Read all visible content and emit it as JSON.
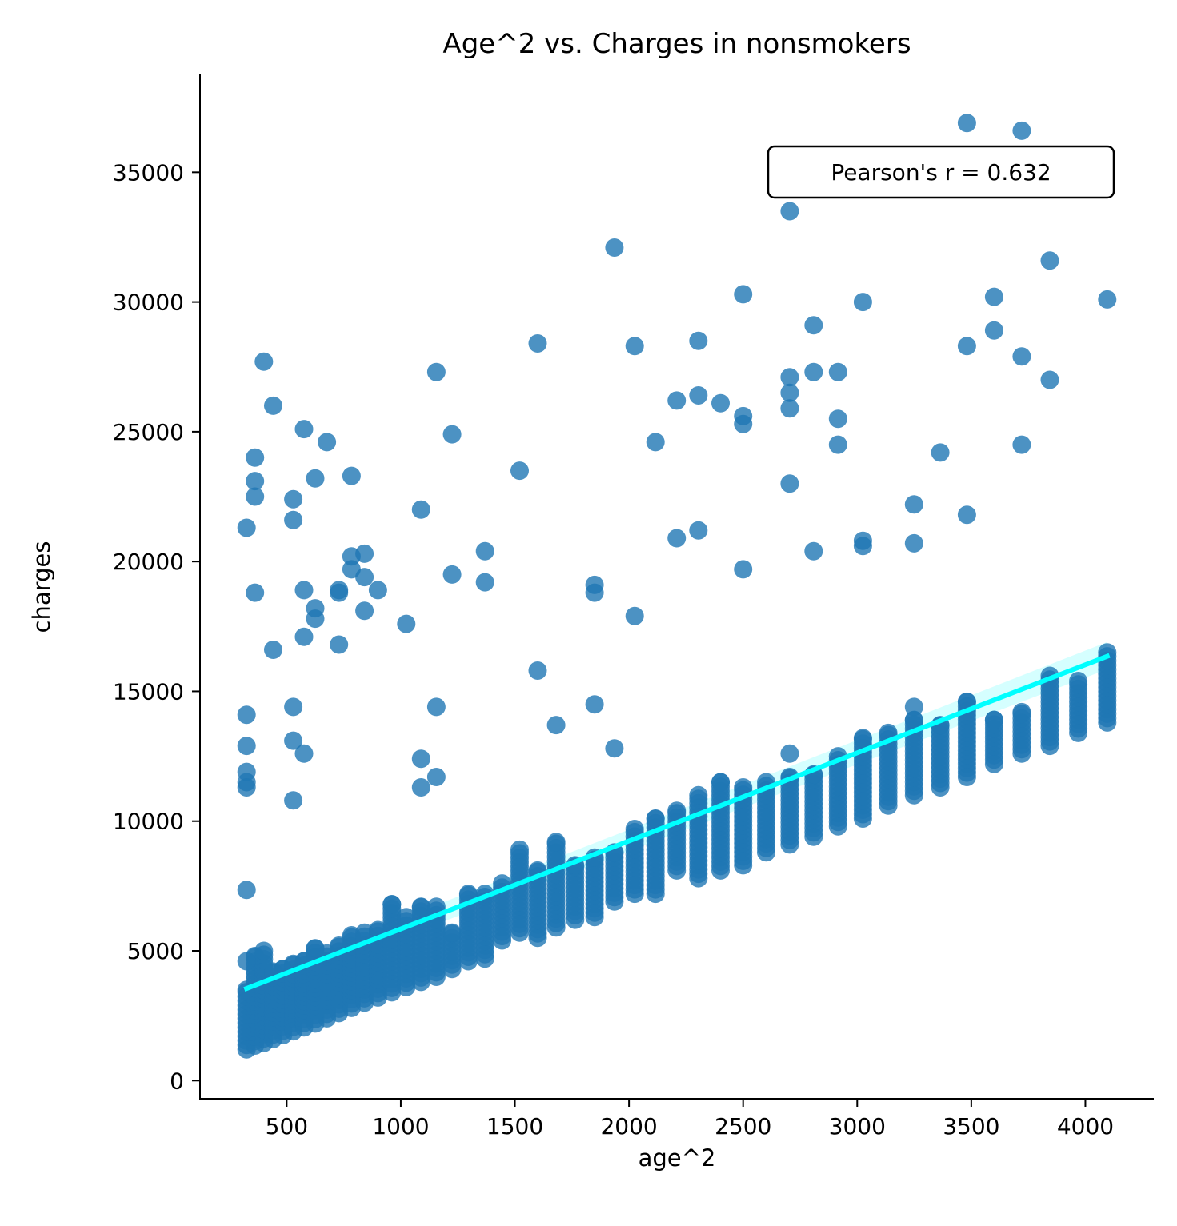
{
  "chart_data": {
    "type": "scatter",
    "title": "Age^2 vs. Charges in nonsmokers",
    "xlabel": "age^2",
    "ylabel": "charges",
    "xlim": [
      120,
      4300
    ],
    "ylim": [
      -700,
      38800
    ],
    "xticks": [
      500,
      1000,
      1500,
      2000,
      2500,
      3000,
      3500,
      4000
    ],
    "yticks": [
      0,
      5000,
      10000,
      15000,
      20000,
      25000,
      30000,
      35000
    ],
    "grid": false,
    "colors": {
      "points": "#1f77b4",
      "regression": "#00ffff",
      "ci_band": "#b3ffff"
    },
    "annotation": {
      "text": "Pearson's r = 0.632",
      "placement": "top-right"
    },
    "regression": {
      "x": [
        324,
        4096
      ],
      "y": [
        3550,
        16350
      ]
    },
    "ci_band": {
      "x": [
        324,
        4096
      ],
      "upper": [
        3900,
        16900
      ],
      "lower": [
        3250,
        15850
      ]
    },
    "outliers": [
      [
        324,
        21300
      ],
      [
        324,
        14100
      ],
      [
        324,
        12900
      ],
      [
        324,
        11900
      ],
      [
        324,
        11500
      ],
      [
        324,
        11300
      ],
      [
        324,
        7350
      ],
      [
        324,
        4600
      ],
      [
        361,
        24000
      ],
      [
        361,
        23100
      ],
      [
        361,
        22500
      ],
      [
        361,
        18800
      ],
      [
        400,
        27700
      ],
      [
        441,
        26000
      ],
      [
        441,
        16600
      ],
      [
        529,
        22400
      ],
      [
        529,
        21600
      ],
      [
        529,
        14400
      ],
      [
        529,
        13100
      ],
      [
        529,
        10800
      ],
      [
        576,
        25100
      ],
      [
        576,
        18900
      ],
      [
        576,
        17100
      ],
      [
        576,
        12600
      ],
      [
        625,
        23200
      ],
      [
        625,
        18200
      ],
      [
        625,
        17800
      ],
      [
        676,
        24600
      ],
      [
        729,
        18900
      ],
      [
        729,
        18800
      ],
      [
        729,
        16800
      ],
      [
        784,
        23300
      ],
      [
        784,
        20200
      ],
      [
        784,
        19700
      ],
      [
        841,
        20300
      ],
      [
        841,
        19400
      ],
      [
        841,
        18100
      ],
      [
        900,
        18900
      ],
      [
        1024,
        17600
      ],
      [
        1089,
        22000
      ],
      [
        1089,
        12400
      ],
      [
        1089,
        11300
      ],
      [
        1156,
        27300
      ],
      [
        1156,
        14400
      ],
      [
        1156,
        11700
      ],
      [
        1225,
        24900
      ],
      [
        1225,
        19500
      ],
      [
        1369,
        20400
      ],
      [
        1369,
        19200
      ],
      [
        1521,
        23500
      ],
      [
        1600,
        28400
      ],
      [
        1600,
        15800
      ],
      [
        1681,
        13700
      ],
      [
        1849,
        19100
      ],
      [
        1849,
        18800
      ],
      [
        1849,
        14500
      ],
      [
        1936,
        32100
      ],
      [
        1936,
        12800
      ],
      [
        2025,
        28300
      ],
      [
        2025,
        17900
      ],
      [
        2116,
        24600
      ],
      [
        2209,
        26200
      ],
      [
        2209,
        20900
      ],
      [
        2304,
        28500
      ],
      [
        2304,
        26400
      ],
      [
        2304,
        21200
      ],
      [
        2401,
        26100
      ],
      [
        2500,
        30300
      ],
      [
        2500,
        25600
      ],
      [
        2500,
        25300
      ],
      [
        2500,
        19700
      ],
      [
        2704,
        33500
      ],
      [
        2704,
        27100
      ],
      [
        2704,
        26500
      ],
      [
        2704,
        25900
      ],
      [
        2704,
        23000
      ],
      [
        2704,
        12600
      ],
      [
        2809,
        29100
      ],
      [
        2809,
        27300
      ],
      [
        2809,
        20400
      ],
      [
        2916,
        27300
      ],
      [
        2916,
        25500
      ],
      [
        2916,
        24500
      ],
      [
        3025,
        30000
      ],
      [
        3025,
        20800
      ],
      [
        3025,
        20600
      ],
      [
        3249,
        22200
      ],
      [
        3249,
        20700
      ],
      [
        3249,
        14400
      ],
      [
        3364,
        24200
      ],
      [
        3481,
        36900
      ],
      [
        3481,
        28300
      ],
      [
        3481,
        21800
      ],
      [
        3600,
        30200
      ],
      [
        3600,
        28900
      ],
      [
        3721,
        36600
      ],
      [
        3721,
        27900
      ],
      [
        3721,
        24500
      ],
      [
        3844,
        31600
      ],
      [
        3844,
        27000
      ],
      [
        4096,
        30100
      ]
    ],
    "bands": [
      [
        324,
        1200,
        3500
      ],
      [
        361,
        1350,
        4800
      ],
      [
        400,
        1450,
        5000
      ],
      [
        441,
        1600,
        4200
      ],
      [
        484,
        1750,
        4300
      ],
      [
        529,
        1900,
        4500
      ],
      [
        576,
        2050,
        4600
      ],
      [
        625,
        2200,
        5100
      ],
      [
        676,
        2400,
        4900
      ],
      [
        729,
        2600,
        5200
      ],
      [
        784,
        2800,
        5600
      ],
      [
        841,
        3000,
        5700
      ],
      [
        900,
        3200,
        5800
      ],
      [
        961,
        3400,
        6800
      ],
      [
        1024,
        3600,
        6300
      ],
      [
        1089,
        3800,
        6700
      ],
      [
        1156,
        4000,
        6700
      ],
      [
        1225,
        4300,
        5700
      ],
      [
        1296,
        4600,
        7200
      ],
      [
        1369,
        4700,
        7200
      ],
      [
        1444,
        5400,
        7600
      ],
      [
        1521,
        5700,
        8900
      ],
      [
        1600,
        5500,
        8100
      ],
      [
        1681,
        5900,
        9200
      ],
      [
        1764,
        6200,
        8300
      ],
      [
        1849,
        6300,
        8600
      ],
      [
        1936,
        6900,
        8800
      ],
      [
        2025,
        7200,
        9700
      ],
      [
        2116,
        7200,
        10100
      ],
      [
        2209,
        8100,
        10400
      ],
      [
        2304,
        7800,
        11000
      ],
      [
        2401,
        8100,
        11500
      ],
      [
        2500,
        8300,
        11300
      ],
      [
        2601,
        8800,
        11500
      ],
      [
        2704,
        9100,
        11700
      ],
      [
        2809,
        9400,
        11800
      ],
      [
        2916,
        9800,
        12500
      ],
      [
        3025,
        10100,
        13200
      ],
      [
        3136,
        10600,
        13400
      ],
      [
        3249,
        11000,
        13900
      ],
      [
        3364,
        11300,
        13700
      ],
      [
        3481,
        11700,
        14600
      ],
      [
        3600,
        12200,
        13900
      ],
      [
        3721,
        12600,
        14200
      ],
      [
        3844,
        12900,
        15600
      ],
      [
        3969,
        13400,
        15400
      ],
      [
        4096,
        13800,
        16500
      ]
    ]
  }
}
